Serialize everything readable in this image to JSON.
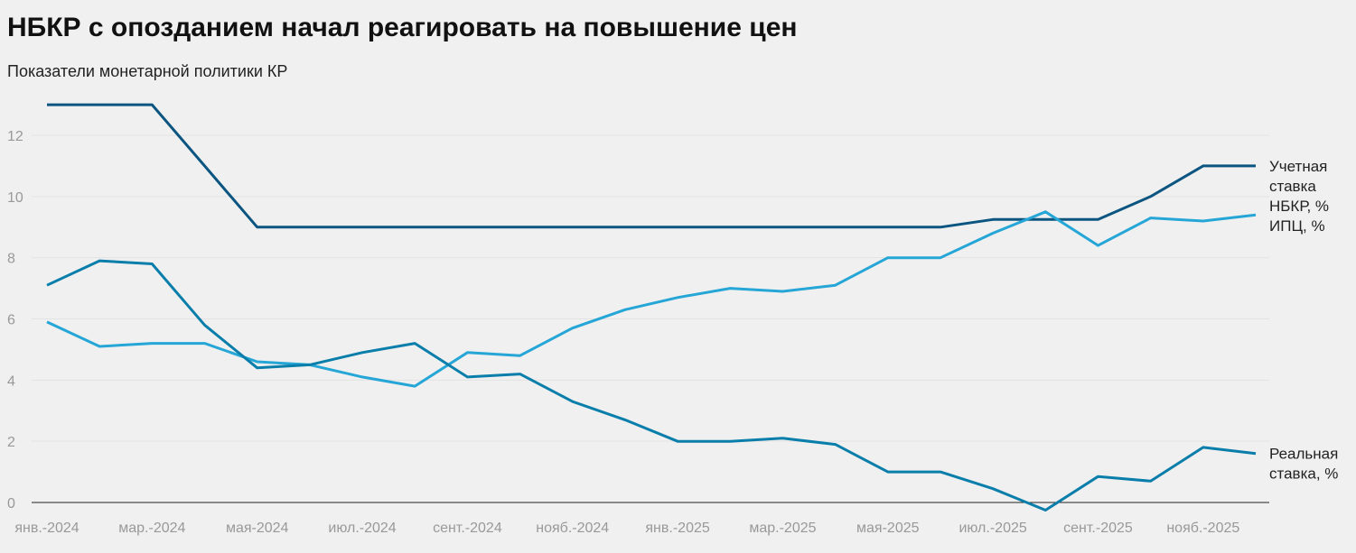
{
  "title": "НБКР с опозданием начал реагировать на повышение цен",
  "subtitle": "Показатели монетарной политики КР",
  "chart_data": {
    "type": "line",
    "title": "НБКР с опозданием начал реагировать на повышение цен",
    "subtitle": "Показатели монетарной политики КР",
    "x": [
      "янв.-2024",
      "февр.-2024",
      "мар.-2024",
      "апр.-2024",
      "мая-2024",
      "июн.-2024",
      "июл.-2024",
      "авг.-2024",
      "сент.-2024",
      "окт.-2024",
      "нояб.-2024",
      "дек.-2024",
      "янв.-2025",
      "февр.-2025",
      "мар.-2025",
      "апр.-2025",
      "мая-2025",
      "июн.-2025",
      "июл.-2025",
      "авг.-2025",
      "сент.-2025",
      "окт.-2025",
      "нояб.-2025",
      "дек.-2025"
    ],
    "x_tick_labels": [
      "янв.-2024",
      "мар.-2024",
      "мая-2024",
      "июл.-2024",
      "сент.-2024",
      "нояб.-2024",
      "янв.-2025",
      "мар.-2025",
      "мая-2025",
      "июл.-2025",
      "сент.-2025",
      "нояб.-2025"
    ],
    "y_ticks": [
      0,
      2,
      4,
      6,
      8,
      10,
      12
    ],
    "ylim": [
      -0.5,
      13.5
    ],
    "grid": "horizontal",
    "legend": "line-end labels, right",
    "series": [
      {
        "name": "Учетная ставка НБКР, %",
        "color": "#0b5580",
        "values": [
          13,
          13,
          13,
          11,
          9,
          9,
          9,
          9,
          9,
          9,
          9,
          9,
          9,
          9,
          9,
          9,
          9,
          9,
          9.25,
          9.25,
          9.25,
          10,
          11,
          11
        ]
      },
      {
        "name": "ИПЦ, %",
        "color": "#25a6d6",
        "values": [
          5.9,
          5.1,
          5.2,
          5.2,
          4.6,
          4.5,
          4.1,
          3.8,
          4.9,
          4.8,
          5.7,
          6.3,
          6.7,
          7.0,
          6.9,
          7.1,
          8.0,
          8.0,
          8.8,
          9.5,
          8.4,
          9.3,
          9.2,
          9.4
        ]
      },
      {
        "name": "Реальная ставка, %",
        "color": "#0a7eaa",
        "values": [
          7.1,
          7.9,
          7.8,
          5.8,
          4.4,
          4.5,
          4.9,
          5.2,
          4.1,
          4.2,
          3.3,
          2.7,
          2.0,
          2.0,
          2.1,
          1.9,
          1.0,
          1.0,
          0.45,
          -0.25,
          0.85,
          0.7,
          1.8,
          1.6
        ]
      }
    ],
    "series_labels": [
      [
        "Учетная",
        "ставка",
        "НБКР, %"
      ],
      [
        "ИПЦ, %"
      ],
      [
        "Реальная",
        "ставка, %"
      ]
    ]
  }
}
